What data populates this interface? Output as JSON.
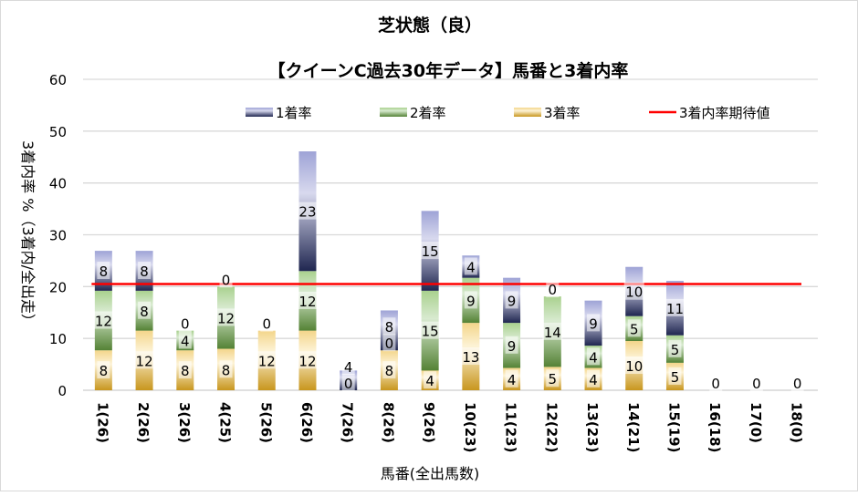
{
  "chart_data": {
    "type": "bar",
    "stacked": true,
    "title": "芝状態（良）",
    "subtitle": "【クイーンC過去30年データ】馬番と3着内率",
    "xlabel": "馬番(全出馬数)",
    "ylabel": "3着内率 %（3着内/全出走）",
    "ylim": [
      0,
      60
    ],
    "yticks": [
      0,
      10,
      20,
      30,
      40,
      50,
      60
    ],
    "grid": true,
    "legend_position": "top",
    "categories": [
      "1(26)",
      "2(26)",
      "3(26)",
      "4(25)",
      "5(26)",
      "6(26)",
      "7(26)",
      "8(26)",
      "9(26)",
      "10(23)",
      "11(23)",
      "12(22)",
      "13(23)",
      "14(21)",
      "15(19)",
      "16(18)",
      "17(0)",
      "18(0)"
    ],
    "series": [
      {
        "name": "3着率",
        "color": "#c8961e",
        "values": [
          7.7,
          11.5,
          7.7,
          8.0,
          11.5,
          11.5,
          0,
          7.7,
          3.8,
          13.0,
          4.3,
          4.5,
          4.3,
          9.5,
          5.3,
          0,
          0,
          0
        ],
        "labels": [
          "8",
          "12",
          "8",
          "8",
          "12",
          "12",
          "0",
          "8",
          "4",
          "13",
          "4",
          "5",
          "4",
          "10",
          "5",
          "0",
          "0",
          "0"
        ]
      },
      {
        "name": "2着率",
        "color": "#548235",
        "values": [
          11.5,
          7.7,
          3.8,
          12.0,
          0,
          11.5,
          0,
          0,
          15.4,
          8.7,
          8.7,
          13.6,
          4.3,
          4.8,
          5.3,
          0,
          0,
          0
        ],
        "labels": [
          "12",
          "8",
          "4",
          "12",
          "",
          "12",
          "",
          "0",
          "15",
          "9",
          "9",
          "14",
          "4",
          "5",
          "5",
          "",
          "",
          ""
        ]
      },
      {
        "name": "1着率",
        "color": "#2f3d8a",
        "values": [
          7.7,
          7.7,
          0,
          0,
          0,
          23.1,
          3.8,
          7.7,
          15.4,
          4.3,
          8.7,
          0,
          8.7,
          9.5,
          10.5,
          0,
          0,
          0
        ],
        "labels": [
          "8",
          "8",
          "0",
          "0",
          "0",
          "23",
          "4",
          "8",
          "15",
          "4",
          "9",
          "0",
          "9",
          "10",
          "11",
          "",
          "",
          ""
        ]
      }
    ],
    "reference_line": {
      "name": "3着内率期待値",
      "value": 20.5,
      "color": "#ff0000"
    }
  }
}
